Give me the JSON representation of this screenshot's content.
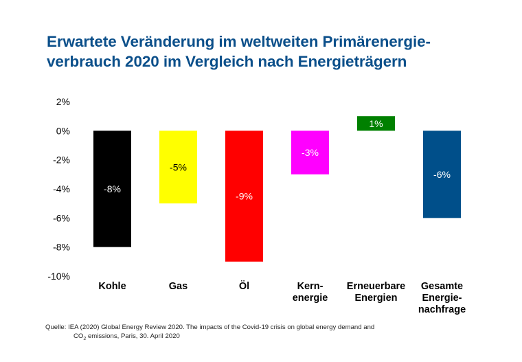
{
  "title_line1": "Erwartete Veränderung im weltweiten Primärenergie-",
  "title_line2": "verbrauch 2020 im Vergleich nach Energieträgern",
  "chart_data": {
    "type": "bar",
    "title": "Erwartete Veränderung im weltweiten Primärenergieverbrauch 2020 im Vergleich nach Energieträgern",
    "xlabel": "",
    "ylabel": "",
    "ylim": [
      -10,
      2
    ],
    "yticks": [
      2,
      0,
      -2,
      -4,
      -6,
      -8,
      -10
    ],
    "ytick_labels": [
      "2%",
      "0%",
      "-2%",
      "-4%",
      "-6%",
      "-8%",
      "-10%"
    ],
    "grid": false,
    "categories": [
      [
        "Kohle"
      ],
      [
        "Gas"
      ],
      [
        "Öl"
      ],
      [
        "Kern-",
        "energie"
      ],
      [
        "Erneuerbare",
        "Energien"
      ],
      [
        "Gesamte",
        "Energie-",
        "nachfrage"
      ]
    ],
    "values": [
      -8,
      -5,
      -9,
      -3,
      1,
      -6
    ],
    "data_labels": [
      "-8%",
      "-5%",
      "-9%",
      "-3%",
      "1%",
      "-6%"
    ],
    "colors": [
      "#000000",
      "#ffff00",
      "#ff0000",
      "#ff00ff",
      "#008000",
      "#004f8a"
    ],
    "label_colors": [
      "#ffffff",
      "#000000",
      "#ffffff",
      "#ffffff",
      "#ffffff",
      "#ffffff"
    ]
  },
  "source": {
    "label": "Quelle:",
    "line1": "IEA (2020) Global Energy Review 2020. The impacts of the Covid-19 crisis on global energy demand and",
    "line2_pre": "CO",
    "line2_sub": "2",
    "line2_post": " emissions, Paris, 30. April 2020"
  }
}
